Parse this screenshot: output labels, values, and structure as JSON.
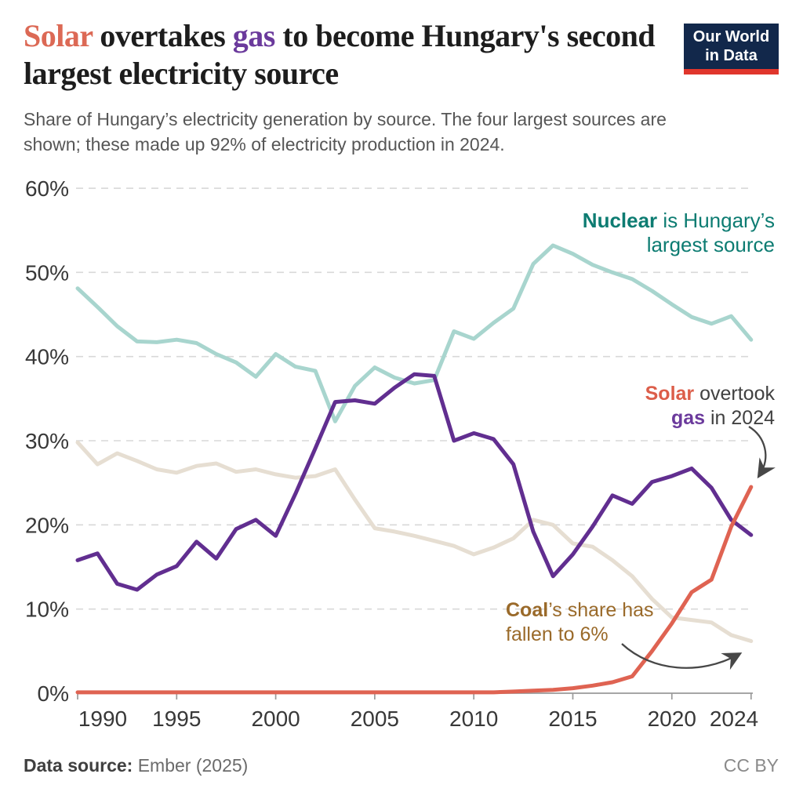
{
  "header": {
    "title_parts": [
      {
        "text": "Solar",
        "accent": "solar"
      },
      {
        "text": " overtakes ",
        "accent": "none"
      },
      {
        "text": "gas",
        "accent": "gas"
      },
      {
        "text": " to become Hungary's second largest electricity source",
        "accent": "none"
      }
    ],
    "subtitle": "Share of Hungary’s electricity generation by source. The four largest sources are shown; these made up 92% of electricity production in 2024."
  },
  "logo": {
    "line1": "Our World",
    "line2": "in Data",
    "bg_color": "#12284b",
    "bar_color": "#e0362c"
  },
  "palette": {
    "title_solar": "#dc6955",
    "title_gas": "#6b3a9c",
    "title_dark": "#1d1d1d",
    "nuclear_text": "#0d7c72",
    "coal_text": "#9a6a2a",
    "annotation_dark": "#414141",
    "axis_text": "#383838",
    "gridline": "#d8d8d8",
    "axis_line": "#9a9a9a",
    "arrow": "#474747"
  },
  "chart_data": {
    "type": "line",
    "title": "Solar overtakes gas to become Hungary's second largest electricity source",
    "xlabel": "",
    "ylabel": "",
    "ylim": [
      0,
      60
    ],
    "xlim": [
      1990,
      2024
    ],
    "grid": "horizontal-dashed",
    "y_ticks": [
      0,
      10,
      20,
      30,
      40,
      50,
      60
    ],
    "y_tick_labels": [
      "0%",
      "10%",
      "20%",
      "30%",
      "40%",
      "50%",
      "60%"
    ],
    "x_ticks": [
      1990,
      1995,
      2000,
      2005,
      2010,
      2015,
      2020,
      2024
    ],
    "x": [
      1990,
      1991,
      1992,
      1993,
      1994,
      1995,
      1996,
      1997,
      1998,
      1999,
      2000,
      2001,
      2002,
      2003,
      2004,
      2005,
      2006,
      2007,
      2008,
      2009,
      2010,
      2011,
      2012,
      2013,
      2014,
      2015,
      2016,
      2017,
      2018,
      2019,
      2020,
      2021,
      2022,
      2023,
      2024
    ],
    "series": [
      {
        "name": "Coal",
        "color": "#e6ded2",
        "values": [
          29.8,
          27.2,
          28.5,
          27.6,
          26.6,
          26.2,
          27.0,
          27.3,
          26.3,
          26.6,
          26.0,
          25.6,
          25.8,
          26.6,
          23.0,
          19.6,
          19.2,
          18.7,
          18.1,
          17.5,
          16.5,
          17.3,
          18.4,
          20.6,
          20.0,
          17.8,
          17.4,
          15.8,
          13.9,
          11.2,
          9.0,
          8.7,
          8.4,
          6.9,
          6.2
        ]
      },
      {
        "name": "Nuclear",
        "color": "#a8d5ce",
        "values": [
          48.1,
          45.9,
          43.6,
          41.8,
          41.7,
          42.0,
          41.6,
          40.3,
          39.3,
          37.6,
          40.3,
          38.8,
          38.3,
          32.3,
          36.5,
          38.7,
          37.5,
          36.8,
          37.2,
          43.0,
          42.1,
          44.0,
          45.7,
          51.0,
          53.2,
          52.2,
          50.9,
          50.0,
          49.2,
          47.8,
          46.2,
          44.7,
          43.9,
          44.8,
          42.0
        ]
      },
      {
        "name": "Gas",
        "color": "#612e90",
        "values": [
          15.8,
          16.6,
          13.0,
          12.3,
          14.1,
          15.1,
          18.0,
          16.0,
          19.5,
          20.6,
          18.7,
          23.7,
          29.1,
          34.6,
          34.8,
          34.4,
          36.3,
          37.9,
          37.7,
          30.0,
          30.9,
          30.2,
          27.2,
          19.2,
          13.9,
          16.5,
          19.8,
          23.5,
          22.5,
          25.1,
          25.8,
          26.7,
          24.4,
          20.6,
          18.8
        ]
      },
      {
        "name": "Solar",
        "color": "#df6352",
        "values": [
          0.1,
          0.1,
          0.1,
          0.1,
          0.1,
          0.1,
          0.1,
          0.1,
          0.1,
          0.1,
          0.1,
          0.1,
          0.1,
          0.1,
          0.1,
          0.1,
          0.1,
          0.1,
          0.1,
          0.1,
          0.1,
          0.1,
          0.2,
          0.3,
          0.4,
          0.6,
          0.9,
          1.3,
          2.0,
          5.0,
          8.3,
          12.0,
          13.5,
          19.8,
          24.5
        ]
      }
    ],
    "annotations": {
      "nuclear": {
        "bold": "Nuclear",
        "rest1": " is Hungary’s",
        "line2": "largest source"
      },
      "solar": {
        "bold1": "Solar",
        "mid": " overtook",
        "bold2": "gas",
        "rest": " in 2024"
      },
      "coal": {
        "bold": "Coal",
        "rest1": "’s share has",
        "line2": "fallen to 6%"
      }
    }
  },
  "footer": {
    "source_label": "Data source:",
    "source_value": " Ember (2025)",
    "license": "CC BY"
  }
}
